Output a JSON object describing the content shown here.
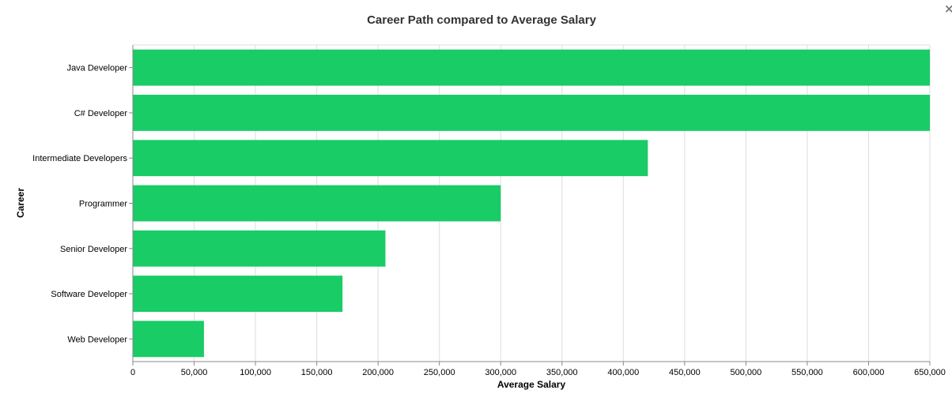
{
  "window": {
    "close_symbol": "×"
  },
  "chart_data": {
    "type": "bar",
    "orientation": "horizontal",
    "title": "Career Path compared to Average Salary",
    "xlabel": "Average Salary",
    "ylabel": "Career",
    "categories": [
      "Java Developer",
      "C# Developer",
      "Intermediate Developers",
      "Programmer",
      "Senior Developer",
      "Software Developer",
      "Web Developer"
    ],
    "values": [
      650000,
      650000,
      420000,
      300000,
      206000,
      171000,
      58000
    ],
    "xlim": [
      0,
      650000
    ],
    "x_ticks": [
      0,
      50000,
      100000,
      150000,
      200000,
      250000,
      300000,
      350000,
      400000,
      450000,
      500000,
      550000,
      600000,
      650000
    ],
    "x_tick_labels": [
      "0",
      "50,000",
      "100,000",
      "150,000",
      "200,000",
      "250,000",
      "300,000",
      "350,000",
      "400,000",
      "450,000",
      "500,000",
      "550,000",
      "600,000",
      "650,000"
    ],
    "grid": true,
    "bar_color": "#19cc66",
    "grid_color": "#dddddd",
    "axis_color": "#888888"
  }
}
